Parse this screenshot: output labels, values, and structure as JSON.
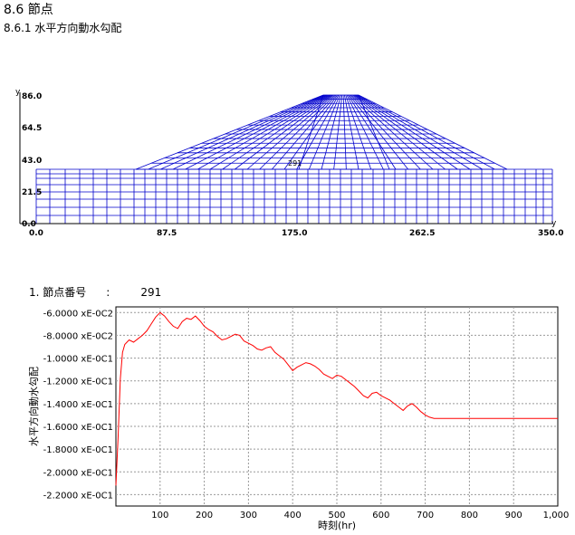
{
  "section": {
    "heading": "8.6 節点",
    "subheading": "8.6.1 水平方向動水勾配"
  },
  "mesh": {
    "y_axis_label": "y",
    "x_axis_label": "y",
    "y_ticks": [
      "86.0",
      "64.5",
      "43.0",
      "21.5",
      "0.0"
    ],
    "x_ticks": [
      "0.0",
      "87.5",
      "175.0",
      "262.5",
      "350.0"
    ],
    "node_marker": "291",
    "line_color": "#0000cc"
  },
  "node_info": {
    "label": "1. 節点番号",
    "colon": ":",
    "value": "291"
  },
  "chart_data": {
    "type": "line",
    "title": "",
    "xlabel": "時刻(hr)",
    "ylabel": "水平方向動水勾配",
    "xlim": [
      0,
      1000
    ],
    "ylim": [
      -0.23,
      -0.055
    ],
    "x_ticks": [
      "100",
      "200",
      "300",
      "400",
      "500",
      "600",
      "700",
      "800",
      "900",
      "1,000"
    ],
    "y_ticks": [
      "-6.0000 xE-0C2",
      "-8.0000 xE-0C2",
      "-1.0000 xE-0C1",
      "-1.2000 xE-0C1",
      "-1.4000 xE-0C1",
      "-1.6000 xE-0C1",
      "-1.8000 xE-0C1",
      "-2.0000 xE-0C1",
      "-2.2000 xE-0C1"
    ],
    "grid": true,
    "line_color": "#ff0000",
    "series": [
      {
        "x": [
          0,
          5,
          10,
          15,
          20,
          25,
          30,
          40,
          50,
          60,
          70,
          80,
          90,
          100,
          110,
          120,
          130,
          140,
          150,
          160,
          170,
          180,
          190,
          200,
          210,
          220,
          230,
          240,
          250,
          260,
          270,
          280,
          290,
          300,
          310,
          320,
          330,
          340,
          350,
          360,
          370,
          380,
          390,
          400,
          410,
          420,
          430,
          440,
          450,
          460,
          470,
          480,
          490,
          500,
          510,
          520,
          530,
          540,
          550,
          560,
          570,
          580,
          590,
          600,
          610,
          620,
          630,
          640,
          650,
          660,
          670,
          680,
          690,
          700,
          710,
          720,
          730,
          800,
          900,
          1000
        ],
        "values": [
          -0.212,
          -0.17,
          -0.118,
          -0.095,
          -0.088,
          -0.086,
          -0.084,
          -0.086,
          -0.083,
          -0.08,
          -0.076,
          -0.07,
          -0.064,
          -0.06,
          -0.063,
          -0.068,
          -0.072,
          -0.074,
          -0.068,
          -0.065,
          -0.066,
          -0.063,
          -0.067,
          -0.072,
          -0.075,
          -0.077,
          -0.081,
          -0.084,
          -0.083,
          -0.081,
          -0.079,
          -0.08,
          -0.085,
          -0.087,
          -0.089,
          -0.092,
          -0.093,
          -0.091,
          -0.09,
          -0.095,
          -0.098,
          -0.101,
          -0.106,
          -0.111,
          -0.108,
          -0.106,
          -0.104,
          -0.105,
          -0.107,
          -0.11,
          -0.114,
          -0.116,
          -0.118,
          -0.115,
          -0.116,
          -0.119,
          -0.122,
          -0.125,
          -0.129,
          -0.133,
          -0.135,
          -0.131,
          -0.13,
          -0.133,
          -0.135,
          -0.137,
          -0.14,
          -0.143,
          -0.146,
          -0.142,
          -0.14,
          -0.143,
          -0.147,
          -0.15,
          -0.152,
          -0.153,
          -0.153,
          -0.153,
          -0.153,
          -0.153
        ]
      }
    ]
  }
}
